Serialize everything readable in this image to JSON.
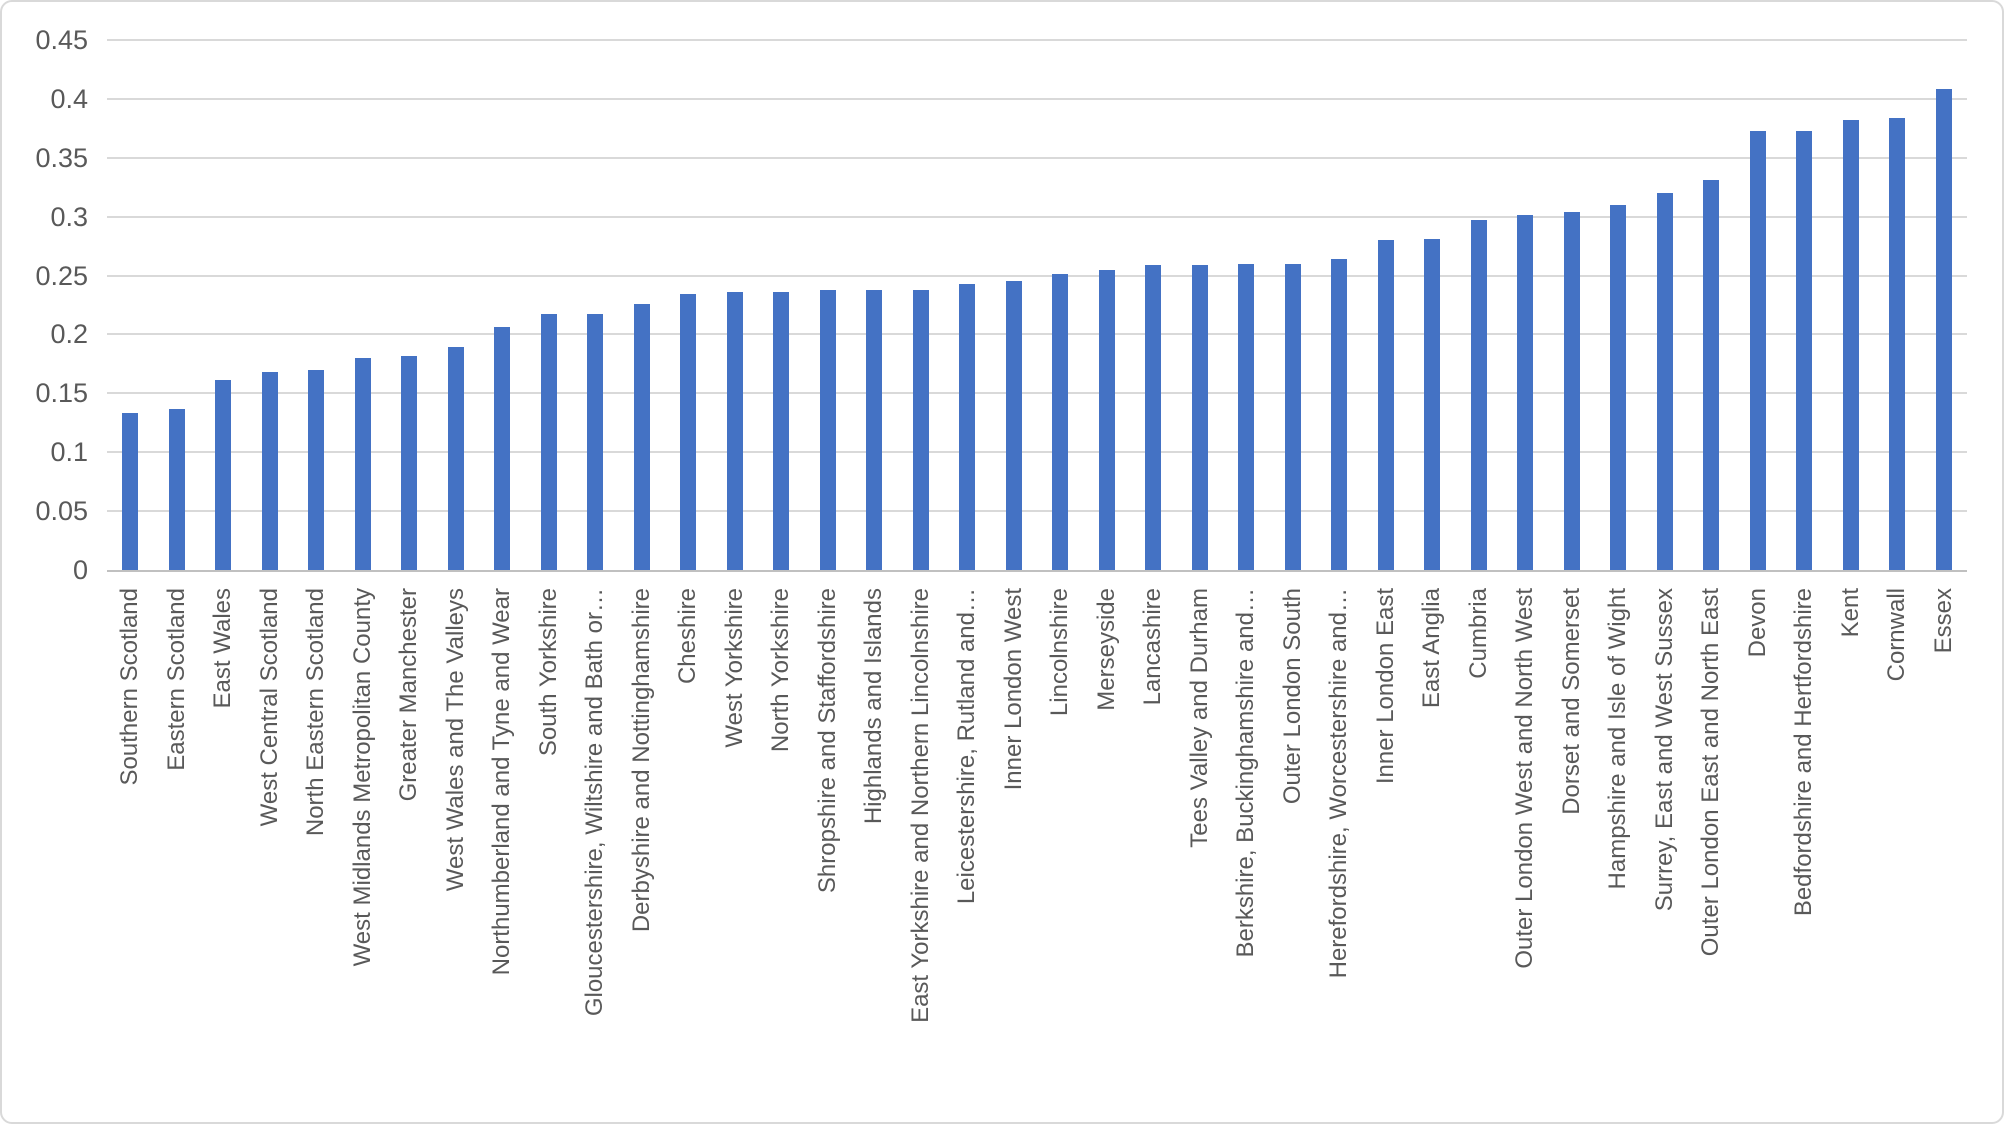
{
  "chart_data": {
    "type": "bar",
    "title": "",
    "xlabel": "",
    "ylabel": "",
    "ylim": [
      0,
      0.45
    ],
    "ytick_labels": [
      "0",
      "0.05",
      "0.1",
      "0.15",
      "0.2",
      "0.25",
      "0.3",
      "0.35",
      "0.4",
      "0.45"
    ],
    "yticks": [
      0,
      0.05,
      0.1,
      0.15,
      0.2,
      0.25,
      0.3,
      0.35,
      0.4,
      0.45
    ],
    "grid": true,
    "legend": false,
    "bar_color": "#4472c4",
    "gridline_color": "#d9d9d9",
    "axis_line_color": "#c0c0c0",
    "label_color": "#595959",
    "background_color": "#ffffff",
    "border_color": "#d9d9d9",
    "categories": [
      "Southern Scotland",
      "Eastern Scotland",
      "East Wales",
      "West Central Scotland",
      "North Eastern Scotland",
      "West Midlands Metropolitan County",
      "Greater Manchester",
      "West Wales and The Valleys",
      "Northumberland and Tyne and Wear",
      "South Yorkshire",
      "Gloucestershire, Wiltshire and Bath or…",
      "Derbyshire and Nottinghamshire",
      "Cheshire",
      "West Yorkshire",
      "North Yorkshire",
      "Shropshire and Staffordshire",
      "Highlands and Islands",
      "East Yorkshire and Northern Lincolnshire",
      "Leicestershire, Rutland and…",
      "Inner London West",
      "Lincolnshire",
      "Merseyside",
      "Lancashire",
      "Tees Valley and Durham",
      "Berkshire, Buckinghamshire and…",
      "Outer London South",
      "Herefordshire, Worcestershire and…",
      "Inner London East",
      "East Anglia",
      "Cumbria",
      "Outer London West and North West",
      "Dorset and Somerset",
      "Hampshire and Isle of Wight",
      "Surrey, East and West Sussex",
      "Outer London East and North East",
      "Devon",
      "Bedfordshire and Hertfordshire",
      "Kent",
      "Cornwall",
      "Essex"
    ],
    "values": [
      0.133,
      0.137,
      0.161,
      0.168,
      0.17,
      0.18,
      0.182,
      0.189,
      0.206,
      0.217,
      0.217,
      0.226,
      0.234,
      0.236,
      0.236,
      0.238,
      0.238,
      0.238,
      0.243,
      0.245,
      0.251,
      0.255,
      0.259,
      0.259,
      0.26,
      0.26,
      0.264,
      0.28,
      0.281,
      0.297,
      0.301,
      0.304,
      0.31,
      0.32,
      0.331,
      0.373,
      0.373,
      0.382,
      0.384,
      0.408
    ]
  }
}
